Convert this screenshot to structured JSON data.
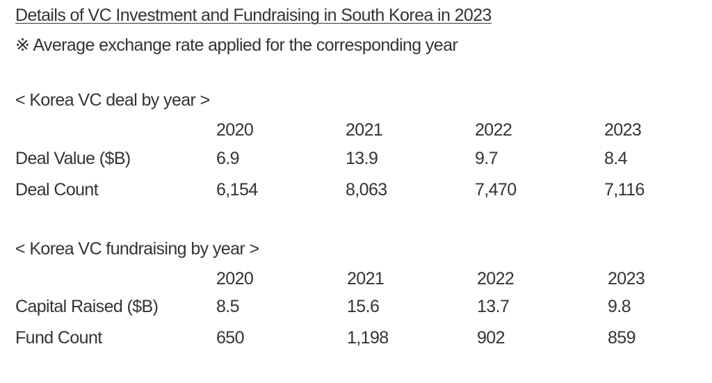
{
  "title": "Details of VC Investment and Fundraising in South Korea in 2023",
  "note": "※ Average exchange rate applied for the corresponding year",
  "deals": {
    "heading": "< Korea VC deal by year >",
    "years": [
      "2020",
      "2021",
      "2022",
      "2023"
    ],
    "rows": [
      {
        "label": "Deal Value ($B)",
        "values": [
          "6.9",
          "13.9",
          "9.7",
          "8.4"
        ]
      },
      {
        "label": "Deal Count",
        "values": [
          "6,154",
          "8,063",
          "7,470",
          "7,116"
        ]
      }
    ]
  },
  "fundraising": {
    "heading": "< Korea VC fundraising by year >",
    "years": [
      "2020",
      "2021",
      "2022",
      "2023"
    ],
    "rows": [
      {
        "label": "Capital Raised ($B)",
        "values": [
          "8.5",
          "15.6",
          "13.7",
          "9.8"
        ]
      },
      {
        "label": "Fund Count",
        "values": [
          "650",
          "1,198",
          "902",
          "859"
        ]
      }
    ]
  }
}
